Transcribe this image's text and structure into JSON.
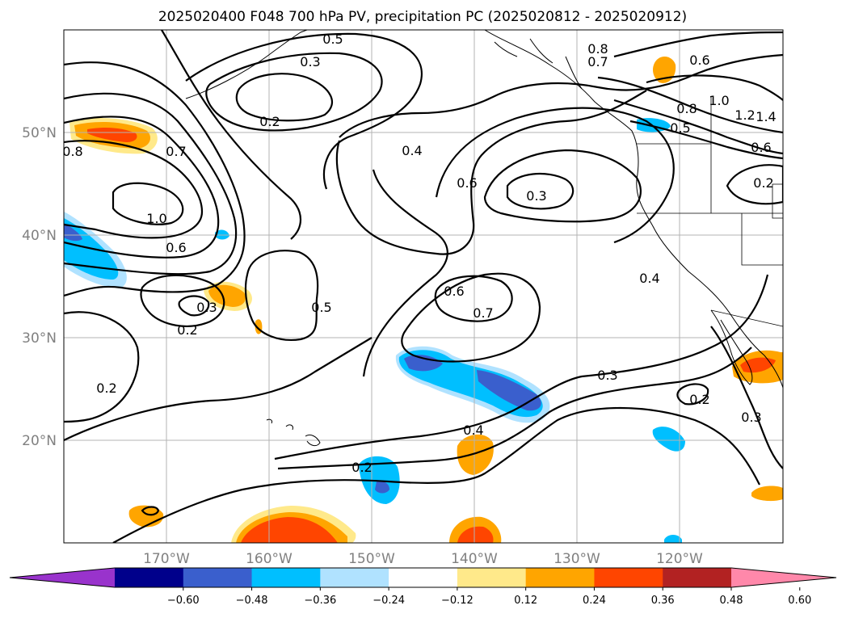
{
  "title": "2025020400 F048 700 hPa PV, precipitation PC (2025020812 - 2025020912)",
  "map": {
    "projection": "lat-lon",
    "lon_range": [
      -180,
      -110
    ],
    "lat_range": [
      10,
      60
    ],
    "gridlines": true,
    "lat_ticks": [
      "50°N",
      "40°N",
      "30°N",
      "20°N"
    ],
    "lon_ticks": [
      "170°W",
      "160°W",
      "150°W",
      "140°W",
      "130°W",
      "120°W"
    ]
  },
  "contours": {
    "variable": "700 hPa PV",
    "color": "#000000",
    "labels": [
      "0.5",
      "0.3",
      "0.2",
      "0.8",
      "0.7",
      "1.0",
      "0.6",
      "0.4",
      "0.3",
      "0.2",
      "0.5",
      "0.6",
      "0.7",
      "0.3",
      "0.2",
      "0.4",
      "0.2",
      "0.3",
      "0.2",
      "0.4",
      "0.3",
      "0.6",
      "0.8",
      "0.7",
      "0.6",
      "0.5",
      "1.0",
      "1.2",
      "1.4",
      "0.2",
      "0.8",
      "0.6"
    ]
  },
  "colorbar": {
    "variable": "precipitation PC",
    "ticks": [
      "−0.60",
      "−0.48",
      "−0.36",
      "−0.24",
      "−0.12",
      "0.12",
      "0.24",
      "0.36",
      "0.48",
      "0.60"
    ],
    "colors": [
      "#9933cc",
      "#00008b",
      "#3a5fcd",
      "#00bfff",
      "#b0e2ff",
      "#ffffff",
      "#ffe98a",
      "#ffa500",
      "#ff4500",
      "#b22222",
      "#ff88aa"
    ],
    "extend": "both"
  },
  "shaded_regions": [
    {
      "id": "gulf-alaska-pos",
      "color": "#ffa500"
    },
    {
      "id": "nw-pacific-pos",
      "color": "#ffa500"
    },
    {
      "id": "dateline-neg",
      "color": "#00bfff"
    },
    {
      "id": "subtropical-band-neg",
      "color": "#3a5fcd"
    },
    {
      "id": "baja-pos",
      "color": "#ff4500"
    },
    {
      "id": "south-pos",
      "color": "#ff4500"
    }
  ]
}
